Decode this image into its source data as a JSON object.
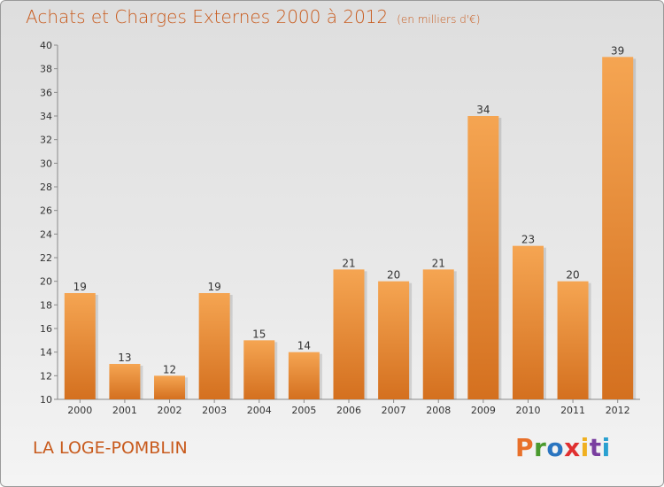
{
  "header": {
    "title": "Achats et Charges Externes 2000 à 2012",
    "unit": "(en milliers d'€)"
  },
  "footer": {
    "commune": "LA LOGE-POMBLIN",
    "brand": "Proxiti"
  },
  "colors": {
    "bar_top": "#f5a552",
    "bar_bottom": "#d4701f",
    "text_accent": "#c85a1c"
  },
  "chart_data": {
    "type": "bar",
    "categories": [
      "2000",
      "2001",
      "2002",
      "2003",
      "2004",
      "2005",
      "2006",
      "2007",
      "2008",
      "2009",
      "2010",
      "2011",
      "2012"
    ],
    "values": [
      19,
      13,
      12,
      19,
      15,
      14,
      21,
      20,
      21,
      34,
      23,
      20,
      39
    ],
    "title": "Achats et Charges Externes 2000 à 2012",
    "subtitle": "(en milliers d'€)",
    "xlabel": "",
    "ylabel": "",
    "ylim": [
      10,
      40
    ],
    "yticks": [
      10,
      12,
      14,
      16,
      18,
      20,
      22,
      24,
      26,
      28,
      30,
      32,
      34,
      36,
      38,
      40
    ],
    "grid": false,
    "data_labels": true
  }
}
